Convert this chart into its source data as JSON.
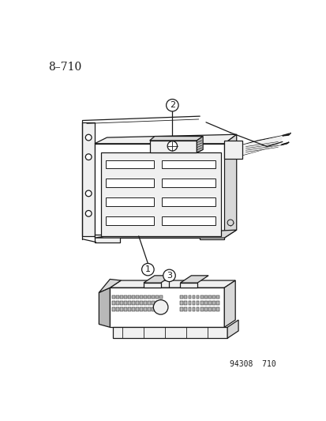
{
  "title": "8–710",
  "footer": "94308  710",
  "bg_color": "#ffffff",
  "line_color": "#1a1a1a",
  "label1": "1",
  "label2": "2",
  "label3": "3",
  "title_fontsize": 10,
  "footer_fontsize": 7,
  "label_fontsize": 8
}
